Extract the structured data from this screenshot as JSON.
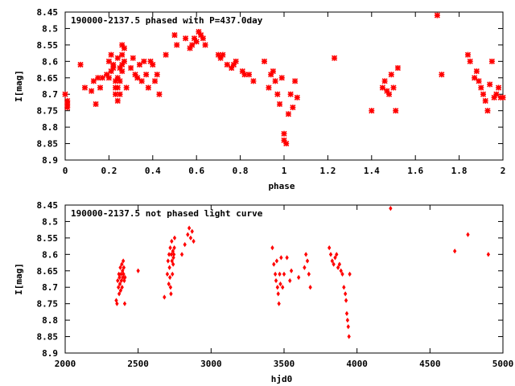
{
  "colors": {
    "points": "#ff0000",
    "axes": "#000000",
    "background": "#ffffff"
  },
  "chart_data": [
    {
      "type": "scatter",
      "title": "190000-2137.5 phased with P=437.0day",
      "xlabel": "phase",
      "ylabel": "I[mag]",
      "xlim": [
        0,
        2
      ],
      "ylim": [
        8.45,
        8.9
      ],
      "y_inverted": true,
      "grid": false,
      "legend": "none",
      "marker": "cross",
      "x_ticks": [
        "0",
        "0.2",
        "0.4",
        "0.6",
        "0.8",
        "1",
        "1.2",
        "1.4",
        "1.6",
        "1.8",
        "2"
      ],
      "y_ticks": [
        "8.45",
        "8.5",
        "8.55",
        "8.6",
        "8.65",
        "8.7",
        "8.75",
        "8.8",
        "8.85",
        "8.9"
      ],
      "x": [
        0.0,
        0.01,
        0.01,
        0.01,
        0.07,
        0.09,
        0.12,
        0.13,
        0.14,
        0.15,
        0.16,
        0.17,
        0.19,
        0.2,
        0.2,
        0.21,
        0.21,
        0.22,
        0.22,
        0.23,
        0.23,
        0.23,
        0.24,
        0.24,
        0.24,
        0.24,
        0.25,
        0.25,
        0.25,
        0.26,
        0.26,
        0.26,
        0.26,
        0.27,
        0.27,
        0.28,
        0.3,
        0.31,
        0.32,
        0.33,
        0.34,
        0.35,
        0.36,
        0.37,
        0.38,
        0.39,
        0.4,
        0.41,
        0.42,
        0.43,
        0.46,
        0.5,
        0.51,
        0.55,
        0.57,
        0.58,
        0.59,
        0.6,
        0.61,
        0.62,
        0.63,
        0.64,
        0.7,
        0.71,
        0.72,
        0.74,
        0.76,
        0.77,
        0.78,
        0.81,
        0.82,
        0.84,
        0.86,
        0.91,
        0.93,
        0.94,
        0.95,
        0.96,
        0.97,
        0.98,
        0.99,
        1.0,
        1.0,
        1.01,
        1.02,
        1.03,
        1.04,
        1.05,
        1.06,
        1.23,
        1.4,
        1.45,
        1.46,
        1.47,
        1.48,
        1.49,
        1.5,
        1.51,
        1.52,
        1.7,
        1.72,
        1.84,
        1.85,
        1.87,
        1.88,
        1.89,
        1.9,
        1.91,
        1.92,
        1.93,
        1.94,
        1.95,
        1.96,
        1.97,
        1.98,
        1.99,
        2.0
      ],
      "y": [
        8.7,
        8.74,
        8.73,
        8.72,
        8.61,
        8.68,
        8.69,
        8.66,
        8.73,
        8.65,
        8.68,
        8.65,
        8.64,
        8.6,
        8.65,
        8.63,
        8.58,
        8.61,
        8.62,
        8.66,
        8.68,
        8.7,
        8.65,
        8.72,
        8.68,
        8.59,
        8.62,
        8.66,
        8.7,
        8.55,
        8.58,
        8.61,
        8.63,
        8.56,
        8.6,
        8.68,
        8.62,
        8.59,
        8.64,
        8.65,
        8.61,
        8.66,
        8.6,
        8.64,
        8.68,
        8.6,
        8.61,
        8.66,
        8.64,
        8.7,
        8.58,
        8.52,
        8.55,
        8.53,
        8.56,
        8.55,
        8.53,
        8.54,
        8.51,
        8.52,
        8.53,
        8.55,
        8.58,
        8.59,
        8.58,
        8.61,
        8.62,
        8.61,
        8.6,
        8.63,
        8.64,
        8.64,
        8.66,
        8.6,
        8.68,
        8.64,
        8.63,
        8.66,
        8.7,
        8.73,
        8.65,
        8.82,
        8.84,
        8.85,
        8.76,
        8.7,
        8.74,
        8.66,
        8.71,
        8.59,
        8.75,
        8.68,
        8.66,
        8.69,
        8.7,
        8.64,
        8.68,
        8.75,
        8.62,
        8.46,
        8.64,
        8.58,
        8.6,
        8.65,
        8.63,
        8.66,
        8.68,
        8.7,
        8.72,
        8.75,
        8.67,
        8.6,
        8.71,
        8.7,
        8.68,
        8.71,
        8.71
      ]
    },
    {
      "type": "scatter",
      "title": "190000-2137.5 not phased light curve",
      "xlabel": "hjd0",
      "ylabel": "I[mag]",
      "xlim": [
        2000,
        5000
      ],
      "ylim": [
        8.45,
        8.9
      ],
      "y_inverted": true,
      "grid": false,
      "legend": "none",
      "marker": "diamond",
      "x_ticks": [
        "2000",
        "2500",
        "3000",
        "3500",
        "4000",
        "4500",
        "5000"
      ],
      "y_ticks": [
        "8.45",
        "8.5",
        "8.55",
        "8.6",
        "8.65",
        "8.7",
        "8.75",
        "8.8",
        "8.85",
        "8.9"
      ],
      "x": [
        2350,
        2355,
        2360,
        2365,
        2368,
        2370,
        2372,
        2375,
        2378,
        2380,
        2383,
        2385,
        2388,
        2390,
        2393,
        2395,
        2398,
        2400,
        2402,
        2405,
        2408,
        2410,
        2500,
        2680,
        2700,
        2705,
        2710,
        2712,
        2715,
        2718,
        2720,
        2722,
        2725,
        2728,
        2730,
        2732,
        2735,
        2738,
        2740,
        2742,
        2745,
        2748,
        2750,
        2800,
        2820,
        2840,
        2850,
        2860,
        2870,
        2880,
        3420,
        3430,
        3440,
        3445,
        3450,
        3455,
        3460,
        3465,
        3470,
        3475,
        3480,
        3490,
        3500,
        3520,
        3540,
        3550,
        3600,
        3640,
        3650,
        3660,
        3670,
        3680,
        3810,
        3820,
        3830,
        3840,
        3850,
        3860,
        3870,
        3880,
        3890,
        3900,
        3910,
        3920,
        3925,
        3930,
        3935,
        3940,
        3945,
        3950,
        4230,
        4670,
        4760,
        4900
      ],
      "y": [
        8.74,
        8.75,
        8.68,
        8.7,
        8.66,
        8.72,
        8.67,
        8.69,
        8.64,
        8.71,
        8.66,
        8.68,
        8.63,
        8.7,
        8.65,
        8.67,
        8.62,
        8.66,
        8.64,
        8.68,
        8.75,
        8.67,
        8.65,
        8.73,
        8.66,
        8.62,
        8.69,
        8.6,
        8.64,
        8.67,
        8.58,
        8.7,
        8.72,
        8.6,
        8.56,
        8.62,
        8.66,
        8.59,
        8.63,
        8.61,
        8.6,
        8.58,
        8.55,
        8.6,
        8.57,
        8.54,
        8.52,
        8.55,
        8.53,
        8.56,
        8.58,
        8.63,
        8.66,
        8.68,
        8.62,
        8.7,
        8.72,
        8.75,
        8.66,
        8.69,
        8.61,
        8.7,
        8.66,
        8.61,
        8.68,
        8.65,
        8.67,
        8.64,
        8.6,
        8.62,
        8.66,
        8.7,
        8.58,
        8.6,
        8.62,
        8.63,
        8.61,
        8.6,
        8.64,
        8.63,
        8.65,
        8.66,
        8.7,
        8.72,
        8.74,
        8.78,
        8.8,
        8.82,
        8.85,
        8.66,
        8.46,
        8.59,
        8.54,
        8.6
      ]
    }
  ]
}
